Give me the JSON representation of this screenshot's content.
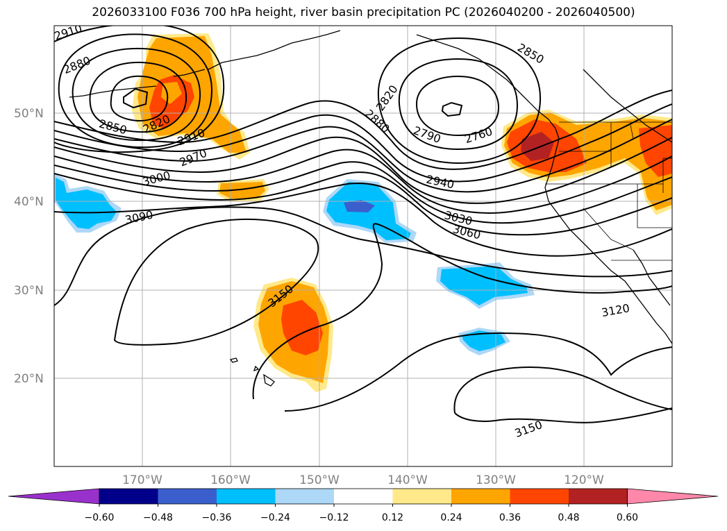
{
  "title": "2026033100 F036 700 hPa height, river basin precipitation PC (2026040200 - 2026040500)",
  "latitude_labels": [
    "50°N",
    "40°N",
    "30°N",
    "20°N"
  ],
  "longitude_labels": [
    "170°W",
    "160°W",
    "150°W",
    "140°W",
    "130°W",
    "120°W"
  ],
  "contour_labels": [
    "2910",
    "2880",
    "2850",
    "2820",
    "2910",
    "2970",
    "3000",
    "3090",
    "2820",
    "2880",
    "2790",
    "2760",
    "2850",
    "2940",
    "3030",
    "3060",
    "3150",
    "3120",
    "3150"
  ],
  "colorbar": {
    "ticks": [
      "−0.60",
      "−0.48",
      "−0.36",
      "−0.24",
      "−0.12",
      "0.12",
      "0.24",
      "0.36",
      "0.48",
      "0.60"
    ],
    "colors": [
      "#9932cc",
      "#00008b",
      "#3a5fcd",
      "#00bfff",
      "#add8f7",
      "#ffffff",
      "#ffe98a",
      "#ffa500",
      "#ff4500",
      "#b22222",
      "#ff88aa"
    ]
  }
}
